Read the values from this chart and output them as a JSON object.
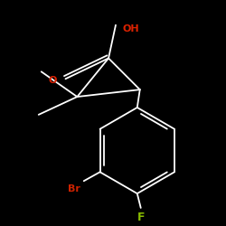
{
  "background_color": "#000000",
  "bond_color": "#ffffff",
  "oh_color": "#dd2200",
  "o_color": "#dd2200",
  "br_color": "#cc2200",
  "f_color": "#88bb00",
  "oh_label": "OH",
  "o_label": "O",
  "br_label": "Br",
  "f_label": "F",
  "figsize": [
    2.5,
    2.5
  ],
  "dpi": 100,
  "lw": 1.3
}
